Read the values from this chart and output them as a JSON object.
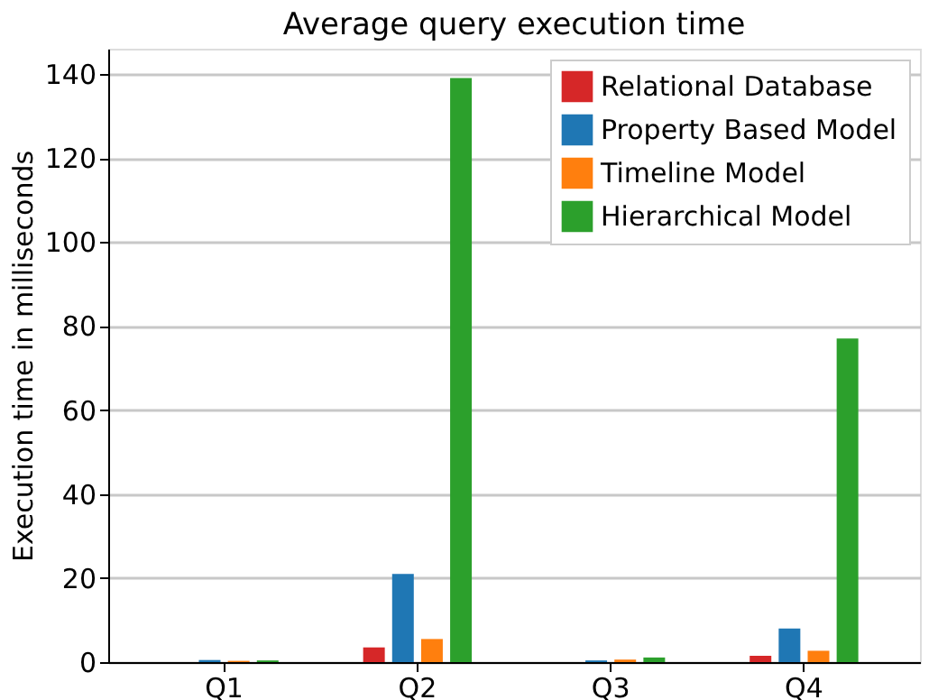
{
  "chart_data": {
    "type": "bar",
    "title": "Average query execution time",
    "ylabel": "Execution time in milliseconds",
    "categories": [
      "Q1",
      "Q2",
      "Q3",
      "Q4"
    ],
    "series": [
      {
        "name": "Relational Database",
        "color": "#d62728",
        "values": [
          null,
          3.5,
          null,
          1.5
        ]
      },
      {
        "name": "Property Based Model",
        "color": "#1f77b4",
        "values": [
          0.5,
          21,
          0.4,
          8
        ]
      },
      {
        "name": "Timeline Model",
        "color": "#ff7f0e",
        "values": [
          0.3,
          5.5,
          0.6,
          2.7
        ]
      },
      {
        "name": "Hierarchical Model",
        "color": "#2ca02c",
        "values": [
          0.4,
          139,
          1.1,
          77
        ]
      }
    ],
    "ylim": [
      0,
      146
    ],
    "yticks": [
      0,
      20,
      40,
      60,
      80,
      100,
      120,
      140
    ],
    "grid": "y",
    "legend": "top right"
  }
}
